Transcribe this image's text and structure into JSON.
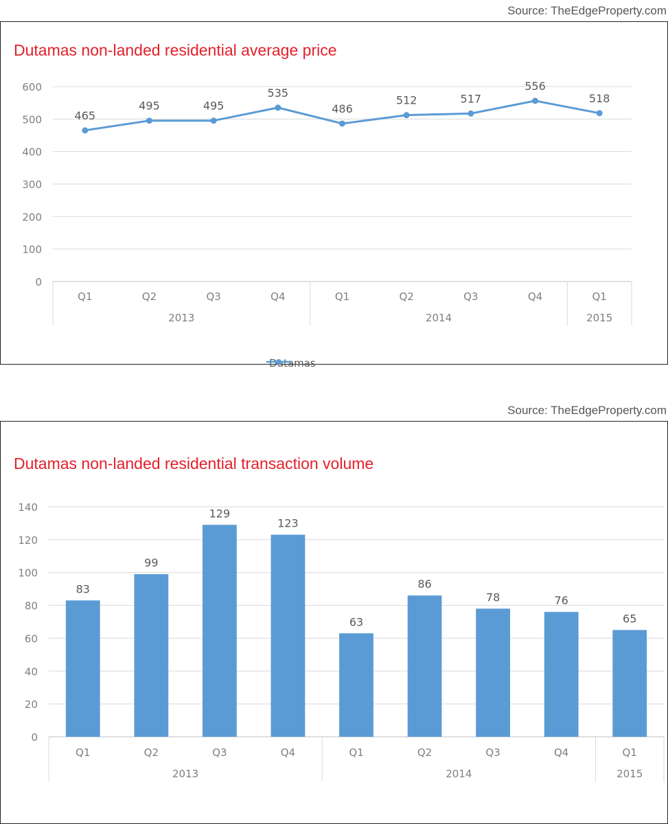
{
  "charts": [
    {
      "source": "Source: TheEdgeProperty.com",
      "title": "Dutamas non-landed residential average price",
      "legend": "Dutamas"
    },
    {
      "source": "Source: TheEdgeProperty.com",
      "title": "Dutamas non-landed residential transaction volume"
    }
  ],
  "colors": {
    "series": "#5b9bd5",
    "title": "#e3202b",
    "grid": "#d9d9d9",
    "axis_text": "#7f7f7f"
  },
  "chart_data": [
    {
      "type": "line",
      "title": "Dutamas non-landed residential average price",
      "categories": [
        "Q1",
        "Q2",
        "Q3",
        "Q4",
        "Q1",
        "Q2",
        "Q3",
        "Q4",
        "Q1"
      ],
      "groups": [
        {
          "label": "2013",
          "count": 4
        },
        {
          "label": "2014",
          "count": 4
        },
        {
          "label": "2015",
          "count": 1
        }
      ],
      "series": [
        {
          "name": "Dutamas",
          "values": [
            465,
            495,
            495,
            535,
            486,
            512,
            517,
            556,
            518
          ]
        }
      ],
      "ylim": [
        0,
        600
      ],
      "yticks": [
        0,
        100,
        200,
        300,
        400,
        500,
        600
      ],
      "data_labels": true,
      "grid": true,
      "legend": "bottom"
    },
    {
      "type": "bar",
      "title": "Dutamas non-landed residential transaction volume",
      "categories": [
        "Q1",
        "Q2",
        "Q3",
        "Q4",
        "Q1",
        "Q2",
        "Q3",
        "Q4",
        "Q1"
      ],
      "groups": [
        {
          "label": "2013",
          "count": 4
        },
        {
          "label": "2014",
          "count": 4
        },
        {
          "label": "2015",
          "count": 1
        }
      ],
      "values": [
        83,
        99,
        129,
        123,
        63,
        86,
        78,
        76,
        65
      ],
      "ylim": [
        0,
        140
      ],
      "yticks": [
        0,
        20,
        40,
        60,
        80,
        100,
        120,
        140
      ],
      "data_labels": true,
      "grid": true
    }
  ]
}
